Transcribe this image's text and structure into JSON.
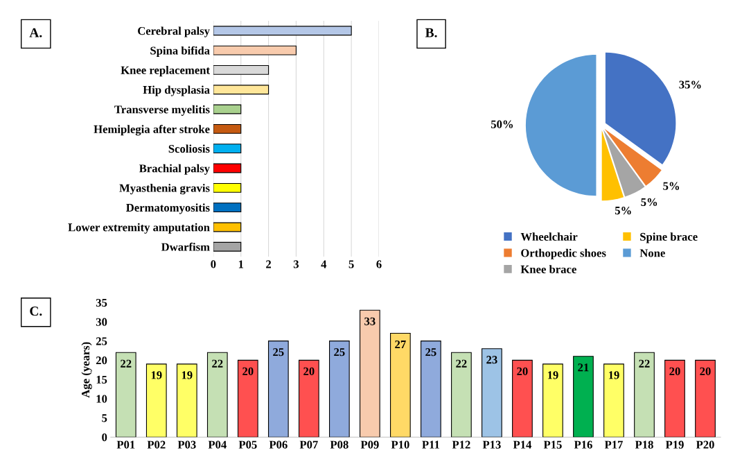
{
  "chart_data": [
    {
      "type": "bar",
      "orientation": "horizontal",
      "annotations": [
        "A."
      ],
      "categories": [
        "Cerebral palsy",
        "Spina bifida",
        "Knee replacement",
        "Hip dysplasia",
        "Transverse myelitis",
        "Hemiplegia after stroke",
        "Scoliosis",
        "Brachial palsy",
        "Myasthenia gravis",
        "Dermatomyositis",
        "Lower extremity amputation",
        "Dwarfism"
      ],
      "values": [
        5,
        3,
        2,
        2,
        1,
        1,
        1,
        1,
        1,
        1,
        1,
        1
      ],
      "colors": [
        "#b4c7e7",
        "#f8cbad",
        "#d9d9d9",
        "#ffe699",
        "#a9d18e",
        "#c55a11",
        "#00b0f0",
        "#ff0000",
        "#ffff00",
        "#0070c0",
        "#ffc000",
        "#a5a5a5"
      ],
      "xlim": [
        0,
        6
      ],
      "xticks": [
        0,
        1,
        2,
        3,
        4,
        5,
        6
      ],
      "grid": "x"
    },
    {
      "type": "pie",
      "annotations": [
        "B."
      ],
      "categories": [
        "Wheelchair",
        "Orthopedic shoes",
        "Knee brace",
        "Spine brace",
        "None"
      ],
      "values": [
        35,
        5,
        5,
        5,
        50
      ],
      "value_labels": [
        "35%",
        "5%",
        "5%",
        "5%",
        "50%"
      ],
      "colors": [
        "#4472c4",
        "#ed7d31",
        "#a5a5a5",
        "#ffc000",
        "#5b9bd5"
      ],
      "legend": "bottom"
    },
    {
      "type": "bar",
      "annotations": [
        "C."
      ],
      "ylabel": "Age (years)",
      "categories": [
        "P01",
        "P02",
        "P03",
        "P04",
        "P05",
        "P06",
        "P07",
        "P08",
        "P09",
        "P10",
        "P11",
        "P12",
        "P13",
        "P14",
        "P15",
        "P16",
        "P17",
        "P18",
        "P19",
        "P20"
      ],
      "values": [
        22,
        19,
        19,
        22,
        20,
        25,
        20,
        25,
        33,
        27,
        25,
        22,
        23,
        20,
        19,
        21,
        19,
        22,
        20,
        20
      ],
      "colors": [
        "#c5e0b4",
        "#ffff66",
        "#ffff66",
        "#c5e0b4",
        "#ff5050",
        "#8faadc",
        "#ff5050",
        "#8faadc",
        "#f8cbad",
        "#ffd966",
        "#8faadc",
        "#c5e0b4",
        "#9dc3e6",
        "#ff5050",
        "#ffff66",
        "#00b050",
        "#ffff66",
        "#c5e0b4",
        "#ff5050",
        "#ff5050"
      ],
      "ylim": [
        0,
        35
      ],
      "yticks": [
        0,
        5,
        10,
        15,
        20,
        25,
        30,
        35
      ],
      "data_labels": true
    }
  ]
}
